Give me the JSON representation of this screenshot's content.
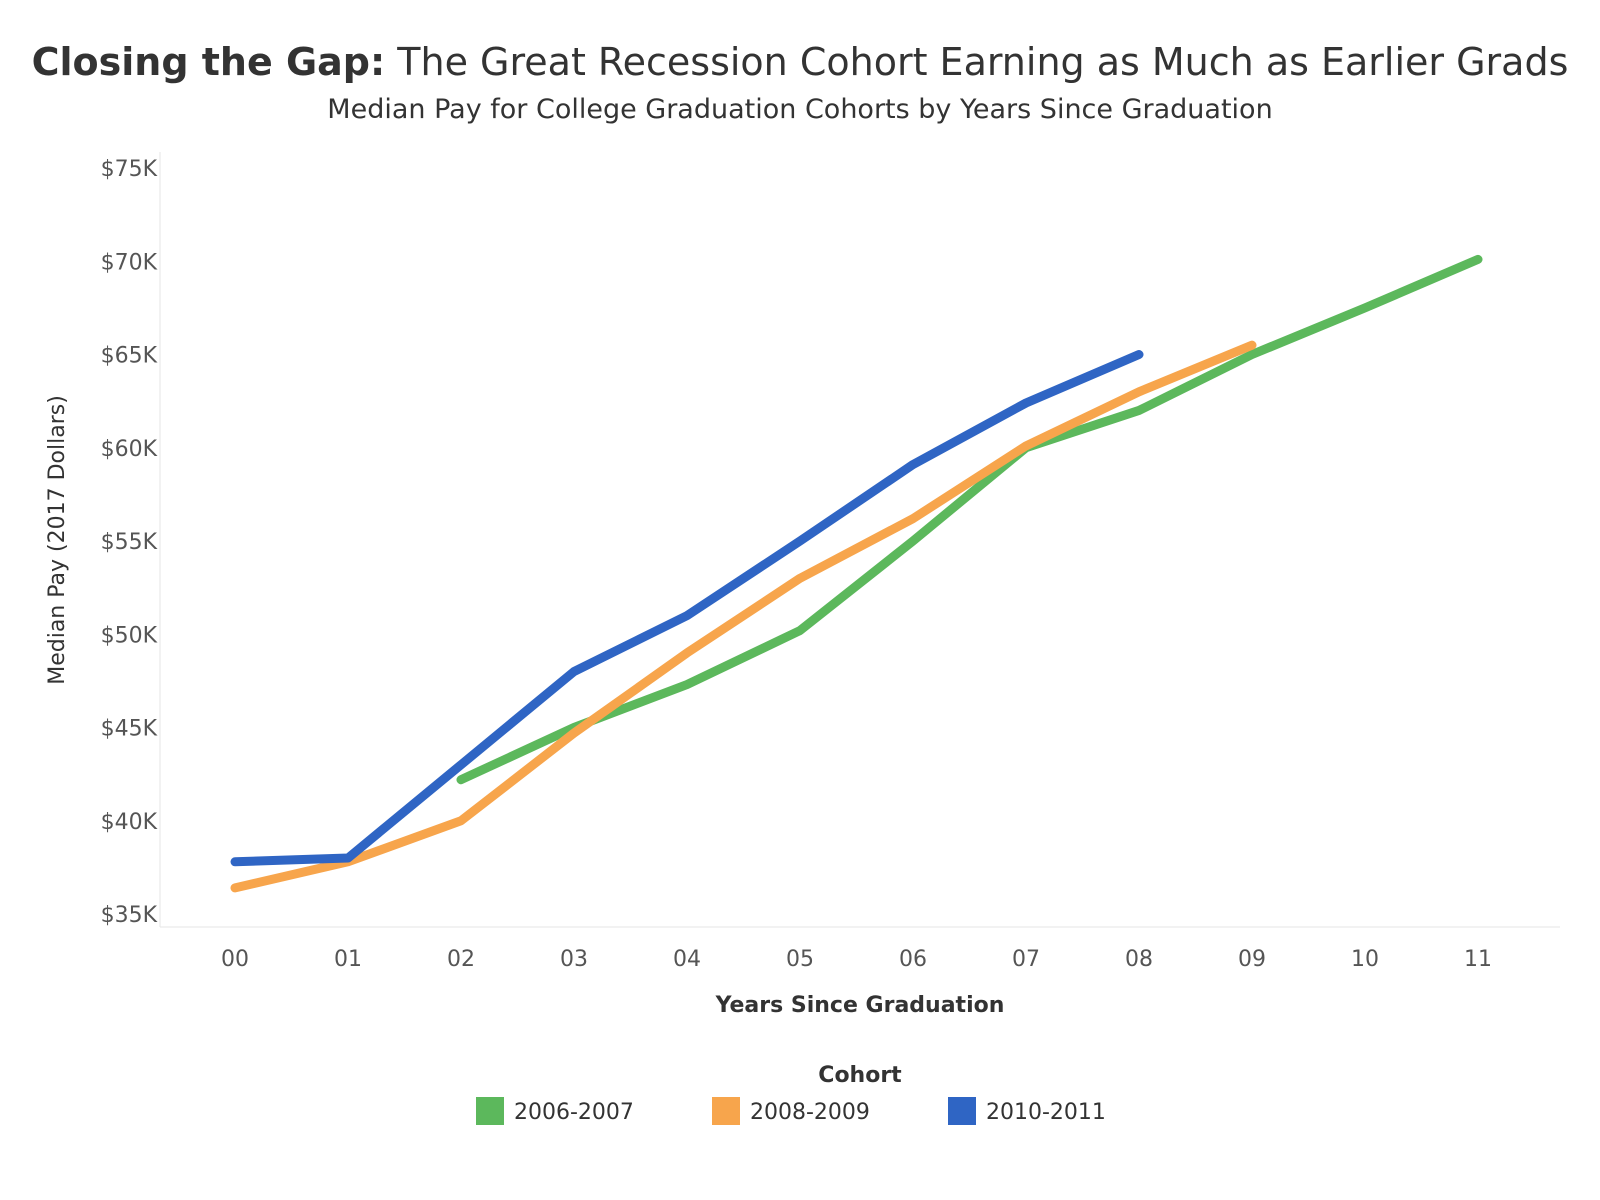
{
  "header": {
    "title_bold": "Closing the Gap:",
    "title_rest": " The Great Recession Cohort Earning as Much as Earlier Grads",
    "subtitle": "Median Pay for College Graduation Cohorts by Years Since Graduation"
  },
  "chart_data": {
    "type": "line",
    "title": "Closing the Gap: The Great Recession Cohort Earning as Much as Earlier Grads",
    "subtitle": "Median Pay for College Graduation Cohorts by Years Since Graduation",
    "xlabel": "Years Since Graduation",
    "ylabel": "Median Pay (2017 Dollars)",
    "x": [
      "00",
      "01",
      "02",
      "03",
      "04",
      "05",
      "06",
      "07",
      "08",
      "09",
      "10",
      "11"
    ],
    "ylim": [
      35000,
      75000
    ],
    "yticks": [
      35000,
      40000,
      45000,
      50000,
      55000,
      60000,
      65000,
      70000,
      75000
    ],
    "ytick_labels": [
      "$35K",
      "$40K",
      "$45K",
      "$50K",
      "$55K",
      "$60K",
      "$65K",
      "$70K",
      "$75K"
    ],
    "grid": false,
    "legend_title": "Cohort",
    "legend_position": "bottom",
    "series": [
      {
        "name": "2006-2007",
        "color": "#5cb85c",
        "values": [
          null,
          null,
          42200,
          45000,
          47300,
          50200,
          55000,
          60000,
          62000,
          65000,
          67500,
          70100
        ]
      },
      {
        "name": "2008-2009",
        "color": "#f7a54c",
        "values": [
          36400,
          37800,
          40000,
          44700,
          49000,
          53000,
          56200,
          60100,
          63000,
          65500,
          null,
          null
        ]
      },
      {
        "name": "2010-2011",
        "color": "#2f65c4",
        "values": [
          37800,
          38000,
          43000,
          48000,
          51000,
          55000,
          59100,
          62400,
          65000,
          null,
          null,
          null
        ]
      }
    ]
  }
}
